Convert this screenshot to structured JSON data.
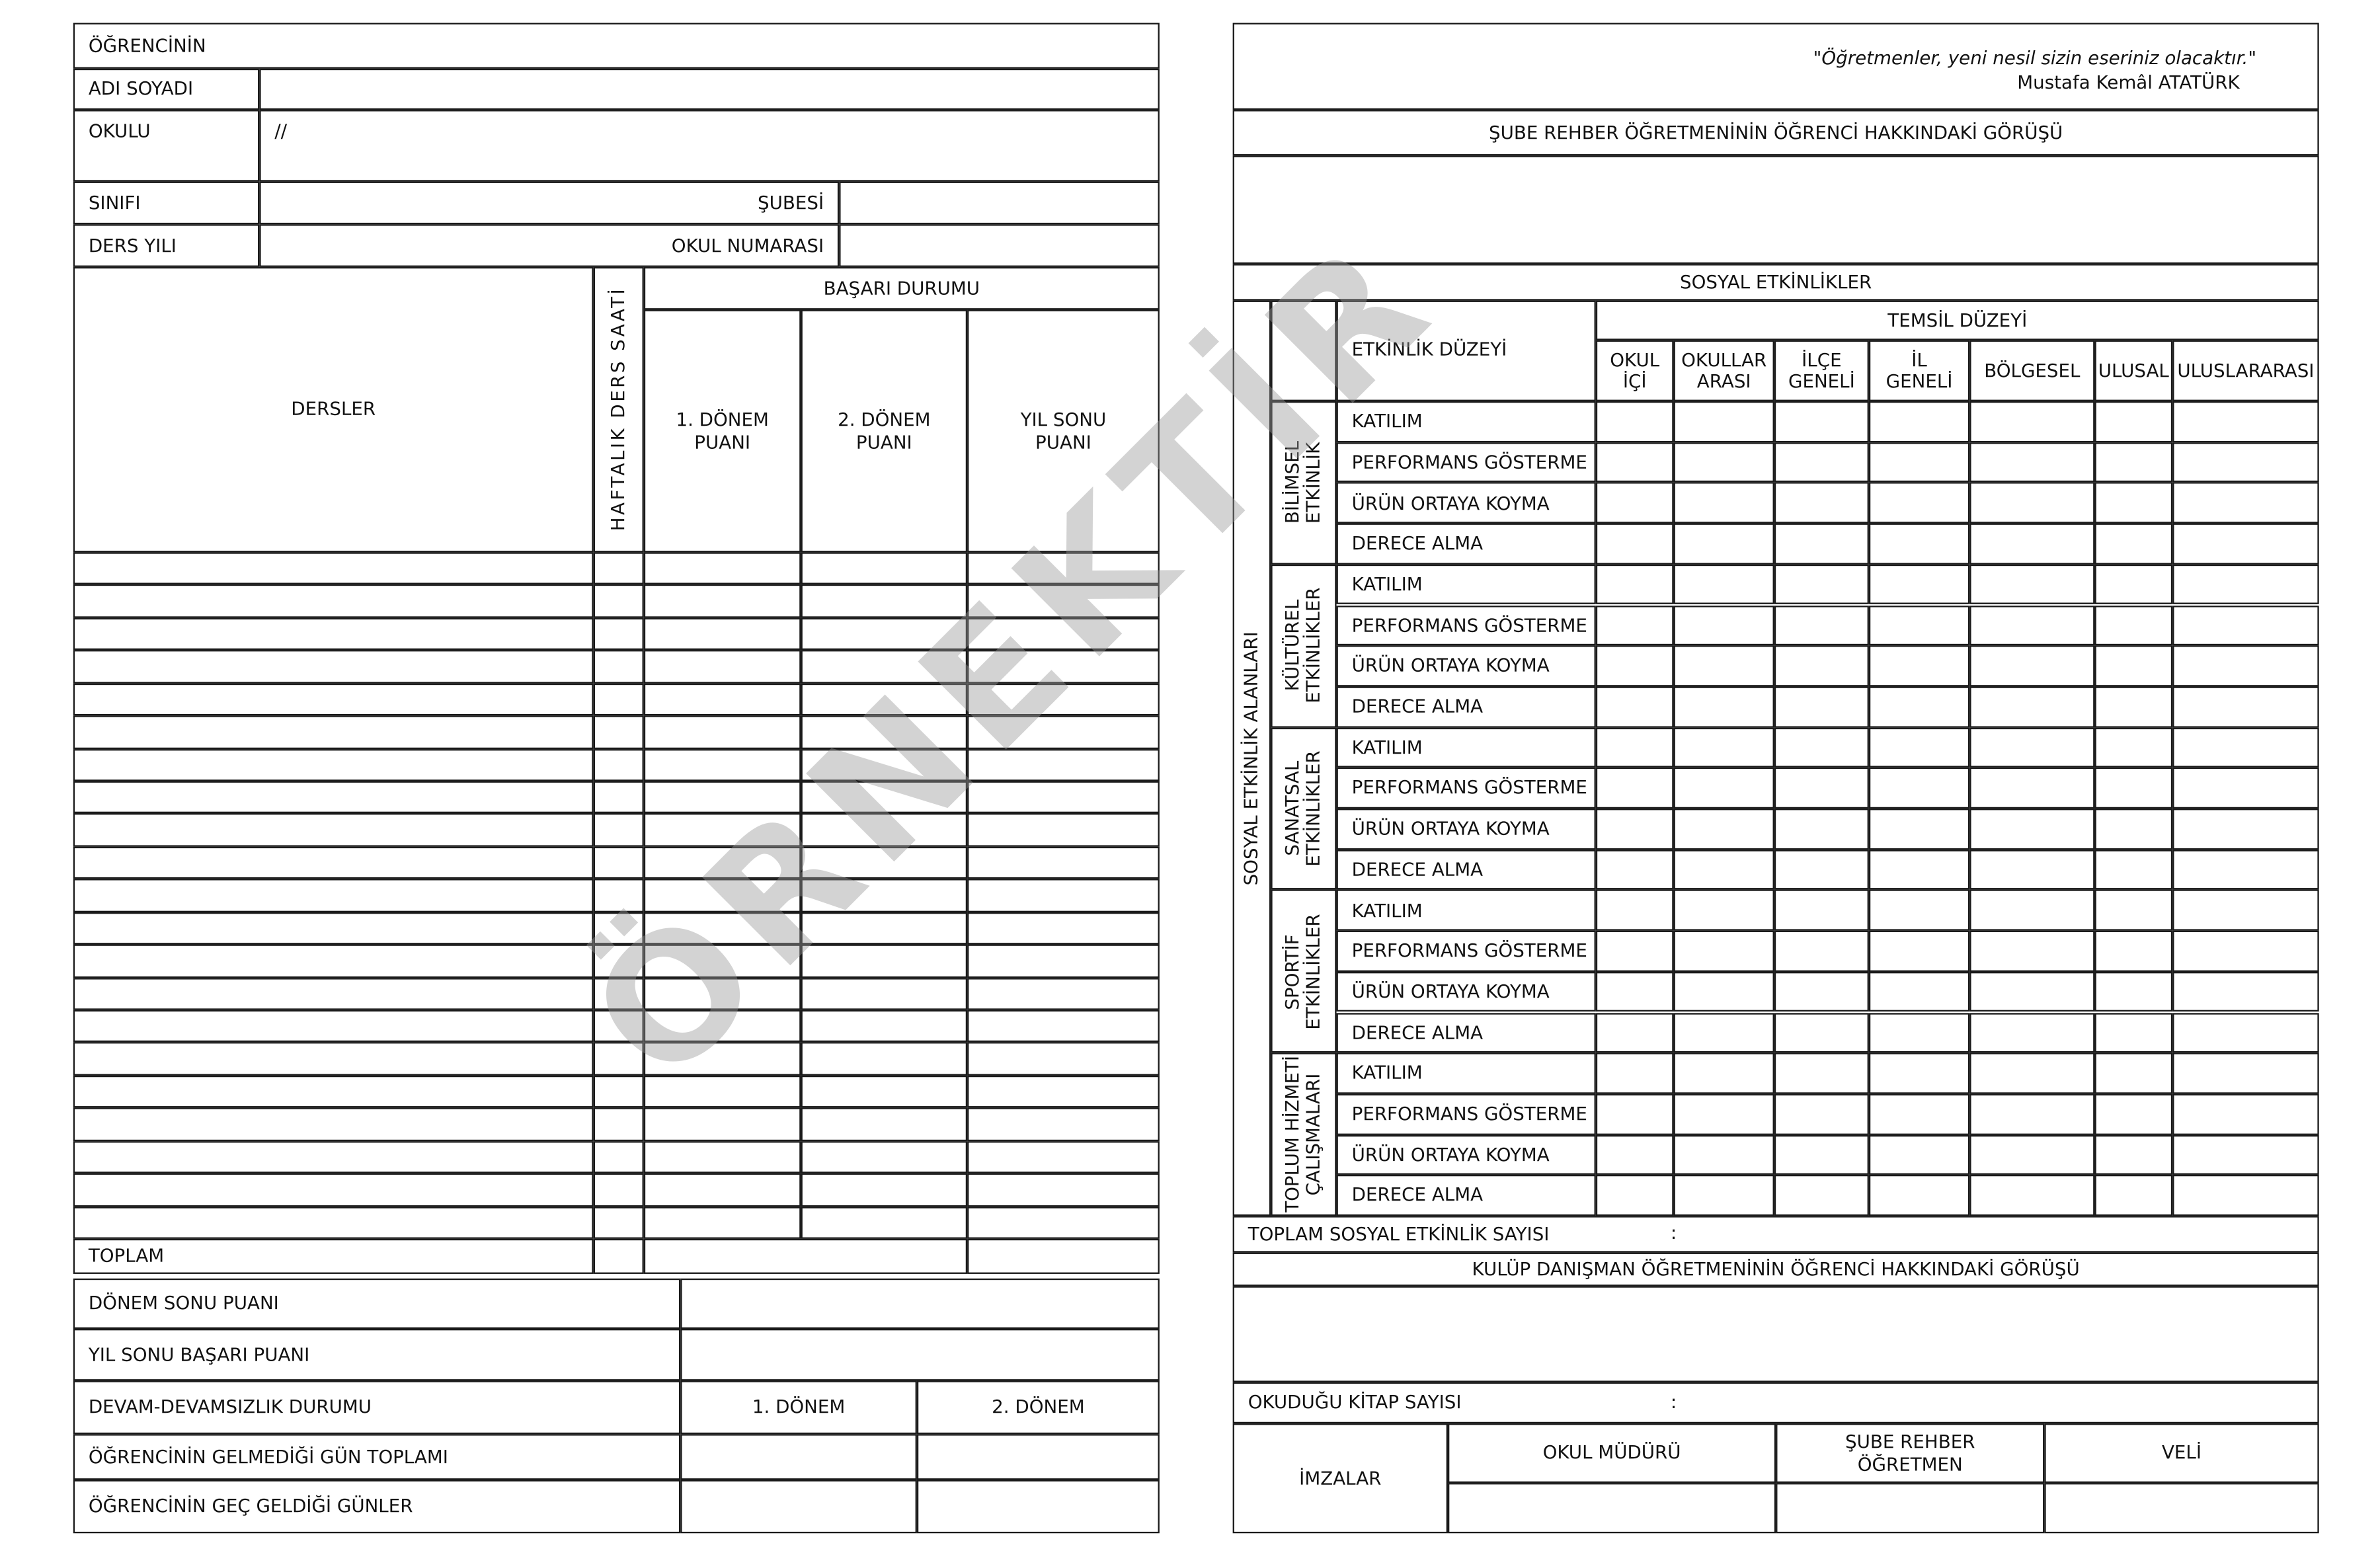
{
  "left": {
    "title": "ÖĞRENCİNİN",
    "name_label": "ADI SOYADI",
    "school_label": "OKULU",
    "school_value": "//",
    "class_label": "SINIFI",
    "branch_label": "ŞUBESİ",
    "year_label": "DERS YILI",
    "number_label": "OKUL NUMARASI",
    "courses_header": "DERSLER",
    "weekly_hours_header": "HAFTALIK DERS SAATİ",
    "success_header": "BAŞARI DURUMU",
    "score_headers": [
      "1. DÖNEM\nPUANI",
      "2. DÖNEM\nPUANI",
      "YIL SONU\nPUANI"
    ],
    "total_label": "TOPLAM",
    "bottom": {
      "term_end_score": "DÖNEM SONU PUANI",
      "year_end_score": "YIL SONU BAŞARI PUANI",
      "attendance": "DEVAM-DEVAMSIZLIK DURUMU",
      "term1": "1. DÖNEM",
      "term2": "2. DÖNEM",
      "absent_days": "ÖĞRENCİNİN GELMEDİĞİ GÜN TOPLAMI",
      "late_days": "ÖĞRENCİNİN GEÇ GELDİĞİ GÜNLER"
    }
  },
  "right": {
    "quote": "\"Öğretmenler, yeni nesil sizin eseriniz olacaktır.\"",
    "quote_author": "Mustafa Kemâl ATATÜRK",
    "guidance_header": "ŞUBE REHBER ÖĞRETMENİNİN ÖĞRENCİ HAKKINDAKİ GÖRÜŞÜ",
    "social_header": "SOSYAL ETKİNLİKLER",
    "areas_label": "SOSYAL ETKİNLİK ALANLARI",
    "activity_level_header": "ETKİNLİK DÜZEYİ",
    "representation_header": "TEMSİL DÜZEYİ",
    "levels": [
      "OKUL\nİÇİ",
      "OKULLAR\nARASI",
      "İLÇE\nGENELİ",
      "İL\nGENELİ",
      "BÖLGESEL",
      "ULUSAL",
      "ULUSLARARASI"
    ],
    "categories": [
      "BİLİMSEL\nETKİNLİK",
      "KÜLTÜREL\nETKİNLİKLER",
      "SANATSAL\nETKİNLİKLER",
      "SPORTİF\nETKİNLİKLER",
      "TOPLUM HİZMETİ\nÇALIŞMALARI"
    ],
    "activities": [
      "KATILIM",
      "PERFORMANS GÖSTERME",
      "ÜRÜN ORTAYA KOYMA",
      "DERECE ALMA"
    ],
    "total_social_label": "TOPLAM SOSYAL ETKİNLİK SAYISI",
    "colon": ":",
    "club_header": "KULÜP DANIŞMAN ÖĞRETMENİNİN ÖĞRENCİ HAKKINDAKİ GÖRÜŞÜ",
    "books_label": "OKUDUĞU KİTAP SAYISI",
    "signatures_label": "İMZALAR",
    "signers": [
      "OKUL MÜDÜRÜ",
      "ŞUBE REHBER\nÖĞRETMEN",
      "VELİ"
    ]
  },
  "watermark": "ÖRNEKTİR"
}
